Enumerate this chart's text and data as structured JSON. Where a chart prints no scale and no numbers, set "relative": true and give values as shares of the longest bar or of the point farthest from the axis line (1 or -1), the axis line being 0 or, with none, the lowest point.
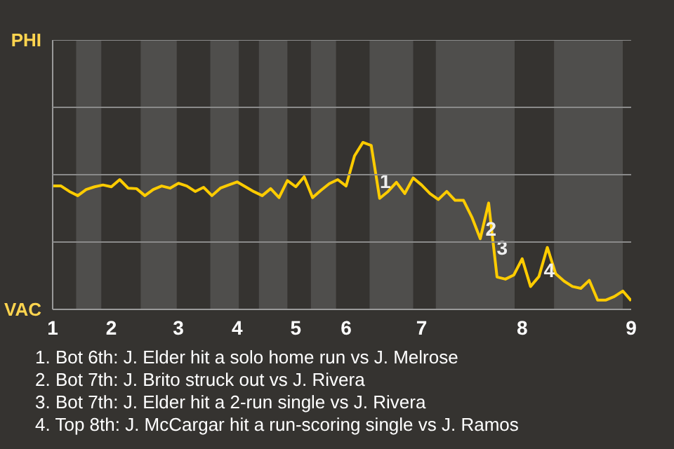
{
  "chart_data": {
    "type": "line",
    "relative": true,
    "categories": [
      "1",
      null,
      null,
      null,
      null,
      null,
      null,
      "2",
      null,
      null,
      null,
      null,
      null,
      null,
      null,
      "3",
      null,
      null,
      null,
      null,
      null,
      null,
      "4",
      null,
      null,
      null,
      null,
      null,
      null,
      "5",
      null,
      null,
      null,
      null,
      null,
      "6",
      null,
      null,
      null,
      null,
      null,
      null,
      null,
      null,
      "7",
      null,
      null,
      null,
      null,
      null,
      null,
      null,
      null,
      null,
      null,
      null,
      "8",
      null,
      null,
      null,
      null,
      null,
      null,
      null,
      null,
      null,
      null,
      null,
      null,
      "9"
    ],
    "series": [
      {
        "color": "#ffcc00",
        "values": [
          0.739,
          0.739,
          0.706,
          0.681,
          0.718,
          0.734,
          0.745,
          0.734,
          0.777,
          0.726,
          0.723,
          0.681,
          0.718,
          0.739,
          0.726,
          0.755,
          0.739,
          0.706,
          0.731,
          0.681,
          0.726,
          0.745,
          0.763,
          0.734,
          0.705,
          0.681,
          0.723,
          0.669,
          0.771,
          0.734,
          0.794,
          0.669,
          0.713,
          0.753,
          0.777,
          0.739,
          0.919,
          1,
          0.981,
          0.665,
          0.706,
          0.761,
          0.694,
          0.787,
          0.745,
          0.694,
          0.658,
          0.706,
          0.653,
          0.653,
          0.552,
          0.423,
          0.637,
          0.194,
          0.181,
          0.206,
          0.303,
          0.137,
          0.197,
          0.371,
          0.213,
          0.169,
          0.137,
          0.126,
          0.174,
          0.056,
          0.056,
          0.077,
          0.11,
          0.052
        ]
      }
    ],
    "ref_lines": [
      {
        "axis": "y",
        "value": 0.403,
        "color": "#8a8a8a"
      },
      {
        "axis": "y",
        "value": 0.806,
        "color": "#8a8a8a"
      },
      {
        "axis": "y",
        "value": 1.21,
        "color": "#8a8a8a"
      },
      {
        "axis": "y",
        "value": 1.613,
        "color": "#8a8a8a"
      }
    ],
    "annotations": [
      "PHI",
      "VAC",
      {
        "text": "1",
        "y": 0.768
      },
      {
        "text": "2",
        "y": 0.484
      },
      {
        "text": "3",
        "y": 0.368
      },
      {
        "text": "4",
        "y": 0.235
      },
      "1. Bot 6th: J. Elder hit a solo home run vs J. Melrose",
      "2. Bot 7th: J. Brito struck out vs J. Rivera",
      "3. Bot 7th: J. Elder hit a 2-run single vs J. Rivera",
      "4. Top 8th: J. McCargar hit a run-scoring single vs J. Ramos"
    ]
  }
}
